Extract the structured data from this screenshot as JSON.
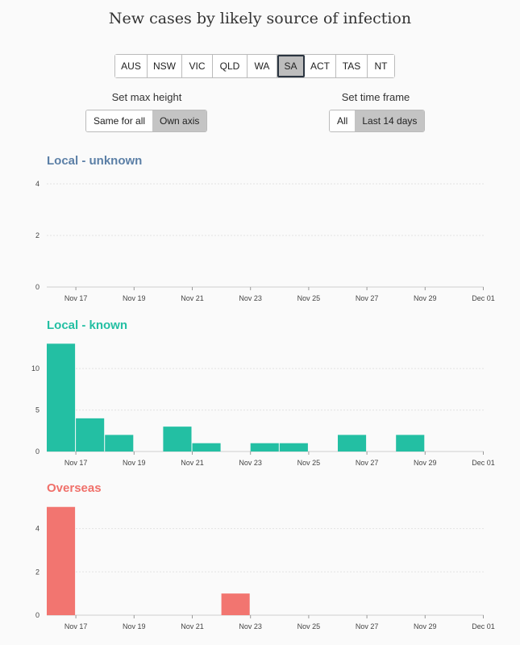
{
  "title": "New cases by likely source of infection",
  "states": [
    {
      "label": "AUS",
      "active": false
    },
    {
      "label": "NSW",
      "active": false
    },
    {
      "label": "VIC",
      "active": false
    },
    {
      "label": "QLD",
      "active": false
    },
    {
      "label": "WA",
      "active": false
    },
    {
      "label": "SA",
      "active": true
    },
    {
      "label": "ACT",
      "active": false
    },
    {
      "label": "TAS",
      "active": false
    },
    {
      "label": "NT",
      "active": false
    }
  ],
  "controls": {
    "max_height": {
      "label": "Set max height",
      "options": [
        "Same for all",
        "Own axis"
      ],
      "selected": 1
    },
    "time_frame": {
      "label": "Set time frame",
      "options": [
        "All",
        "Last 14 days"
      ],
      "selected": 1
    }
  },
  "chart_data": [
    {
      "type": "bar",
      "title": "Local - unknown",
      "color": "#5b7fa6",
      "bar_color": "#5b7fa6",
      "x": [
        "Nov 16",
        "Nov 17",
        "Nov 18",
        "Nov 19",
        "Nov 20",
        "Nov 21",
        "Nov 22",
        "Nov 23",
        "Nov 24",
        "Nov 25",
        "Nov 26",
        "Nov 27",
        "Nov 28",
        "Nov 29",
        "Nov 30"
      ],
      "values": [
        0,
        0,
        0,
        0,
        0,
        0,
        0,
        0,
        0,
        0,
        0,
        0,
        0,
        0,
        0
      ],
      "ylim": [
        0,
        4.5
      ],
      "yticks": [
        0,
        2,
        4
      ],
      "xtick_labels": [
        "Nov 17",
        "Nov 19",
        "Nov 21",
        "Nov 23",
        "Nov 25",
        "Nov 27",
        "Nov 29",
        "Dec 01"
      ]
    },
    {
      "type": "bar",
      "title": "Local - known",
      "color": "#23bfa3",
      "bar_color": "#23bfa3",
      "x": [
        "Nov 16",
        "Nov 17",
        "Nov 18",
        "Nov 19",
        "Nov 20",
        "Nov 21",
        "Nov 22",
        "Nov 23",
        "Nov 24",
        "Nov 25",
        "Nov 26",
        "Nov 27",
        "Nov 28",
        "Nov 29",
        "Nov 30"
      ],
      "values": [
        13,
        4,
        2,
        0,
        3,
        1,
        0,
        1,
        1,
        0,
        2,
        0,
        2,
        0,
        0
      ],
      "ylim": [
        0,
        14
      ],
      "yticks": [
        0,
        5,
        10
      ],
      "xtick_labels": [
        "Nov 17",
        "Nov 19",
        "Nov 21",
        "Nov 23",
        "Nov 25",
        "Nov 27",
        "Nov 29",
        "Dec 01"
      ]
    },
    {
      "type": "bar",
      "title": "Overseas",
      "color": "#f0706a",
      "bar_color": "#f27570",
      "x": [
        "Nov 16",
        "Nov 17",
        "Nov 18",
        "Nov 19",
        "Nov 20",
        "Nov 21",
        "Nov 22",
        "Nov 23",
        "Nov 24",
        "Nov 25",
        "Nov 26",
        "Nov 27",
        "Nov 28",
        "Nov 29",
        "Nov 30"
      ],
      "values": [
        5,
        0,
        0,
        0,
        0,
        0,
        1,
        0,
        0,
        0,
        0,
        0,
        0,
        0,
        0
      ],
      "ylim": [
        0,
        5.4
      ],
      "yticks": [
        0,
        2,
        4
      ],
      "xtick_labels": [
        "Nov 17",
        "Nov 19",
        "Nov 21",
        "Nov 23",
        "Nov 25",
        "Nov 27",
        "Nov 29",
        "Dec 01"
      ]
    }
  ]
}
